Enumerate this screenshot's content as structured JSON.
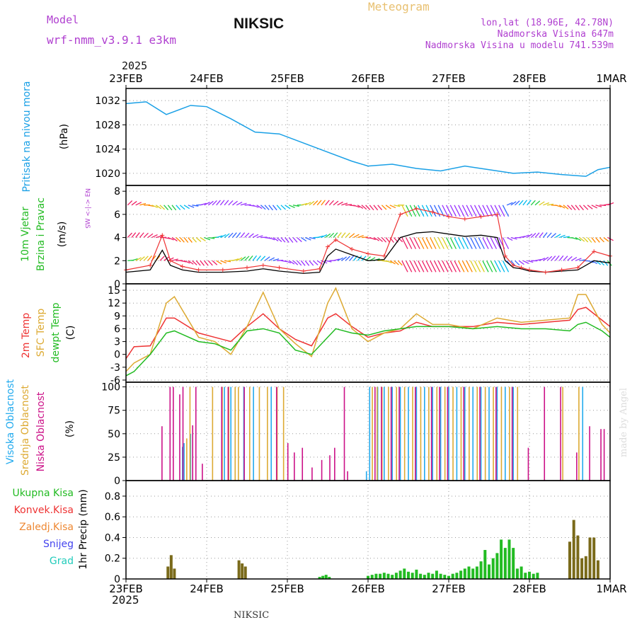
{
  "header": {
    "model_label": "Model",
    "model_name": "wrf-nmm_v3.9.1 e3km",
    "station": "NIKSIC",
    "product": "Meteogram",
    "coords": "lon,lat (18.96E, 42.78N)",
    "elevation": "Nadmorska Visina 647m",
    "model_elevation": "Nadmorska Visina u modelu 741.539m",
    "year": "2025",
    "footer_station": "NIKSIC",
    "credit": "made by Angel"
  },
  "colors": {
    "pressure": "#1aa0e6",
    "wind_speed": "#000000",
    "gust": "#ee3333",
    "temp2m": "#ee3333",
    "sfc": "#ddaa33",
    "dew": "#22bb22",
    "cloud_high": "#22aaee",
    "cloud_mid": "#ddaa33",
    "cloud_low": "#cc1188",
    "prec_total": "#22bb22",
    "prec_conv": "#ee3333",
    "prec_frozen": "#ee8833",
    "prec_snow": "#4444ee",
    "prec_grad": "#22ccbb"
  },
  "chart_data": [
    {
      "type": "line",
      "title": "Pritisak na nivou mora",
      "ylabel": "(hPa)",
      "ylim": [
        1018,
        1034
      ],
      "yticks": [
        "1032",
        "1028",
        "1024",
        "1020"
      ],
      "x_days": [
        0,
        0.25,
        0.5,
        0.8,
        1.0,
        1.3,
        1.6,
        1.9,
        2.2,
        2.5,
        2.8,
        3.0,
        3.3,
        3.6,
        3.9,
        4.2,
        4.5,
        4.8,
        5.1,
        5.4,
        5.7,
        5.85,
        6.0
      ],
      "values": [
        1031.5,
        1031.8,
        1029.7,
        1031.2,
        1031.0,
        1029.0,
        1026.8,
        1026.5,
        1025.0,
        1023.5,
        1022.0,
        1021.2,
        1021.5,
        1020.8,
        1020.4,
        1021.2,
        1020.6,
        1020.0,
        1020.2,
        1019.8,
        1019.5,
        1020.6,
        1021.0
      ]
    },
    {
      "type": "line",
      "title": "10m Vjetar",
      "subtitle": "Brzina i Pravac",
      "ylabel": "(m/s)",
      "ylim": [
        0,
        8.5
      ],
      "yticks": [
        "8",
        "6",
        "4",
        "2",
        "0"
      ],
      "legend": "W <-|-> E",
      "series": [
        {
          "name": "Brzina",
          "x_days": [
            0,
            0.3,
            0.45,
            0.55,
            0.7,
            0.9,
            1.2,
            1.5,
            1.7,
            1.9,
            2.2,
            2.4,
            2.5,
            2.6,
            2.8,
            3.0,
            3.2,
            3.4,
            3.6,
            3.8,
            4.0,
            4.2,
            4.4,
            4.6,
            4.7,
            4.8,
            4.9,
            5.0,
            5.2,
            5.4,
            5.6,
            5.8,
            6.0
          ],
          "values": [
            1.0,
            1.2,
            2.9,
            1.6,
            1.2,
            1.0,
            1.0,
            1.1,
            1.3,
            1.1,
            0.9,
            1.0,
            2.4,
            3.0,
            2.5,
            2.0,
            2.1,
            4.0,
            4.4,
            4.5,
            4.3,
            4.1,
            4.2,
            4.0,
            2.0,
            1.4,
            1.3,
            1.1,
            1.0,
            1.1,
            1.2,
            2.0,
            1.8
          ]
        },
        {
          "name": "Udar",
          "x_days": [
            0,
            0.3,
            0.45,
            0.55,
            0.7,
            0.9,
            1.2,
            1.5,
            1.7,
            1.9,
            2.2,
            2.4,
            2.5,
            2.6,
            2.8,
            3.0,
            3.2,
            3.4,
            3.6,
            3.8,
            4.0,
            4.2,
            4.4,
            4.6,
            4.7,
            4.8,
            4.9,
            5.0,
            5.2,
            5.4,
            5.6,
            5.8,
            6.0
          ],
          "values": [
            1.2,
            1.6,
            4.2,
            2.0,
            1.5,
            1.2,
            1.2,
            1.4,
            1.6,
            1.4,
            1.1,
            1.3,
            3.2,
            3.8,
            3.0,
            2.6,
            2.4,
            6.0,
            6.5,
            6.2,
            5.8,
            5.6,
            5.8,
            6.0,
            2.4,
            1.6,
            1.4,
            1.2,
            1.0,
            1.2,
            1.4,
            2.8,
            2.4
          ]
        }
      ]
    },
    {
      "type": "line",
      "title": "2m Temp",
      "ylabel": "(C)",
      "ylim": [
        -6.5,
        16.5
      ],
      "yticks": [
        "15",
        "12",
        "9",
        "6",
        "3",
        "0",
        "-3",
        "-6"
      ],
      "series": [
        {
          "name": "2m Temp",
          "x_days": [
            0,
            0.1,
            0.3,
            0.5,
            0.6,
            0.9,
            1.1,
            1.3,
            1.5,
            1.7,
            1.9,
            2.1,
            2.3,
            2.5,
            2.6,
            2.8,
            3.0,
            3.2,
            3.4,
            3.6,
            3.8,
            4.0,
            4.3,
            4.6,
            4.9,
            5.2,
            5.5,
            5.6,
            5.7,
            5.9,
            6.0
          ],
          "values": [
            -1.0,
            1.8,
            2.0,
            8.5,
            8.5,
            5.0,
            4.0,
            3.0,
            6.5,
            9.5,
            6.0,
            3.5,
            2.0,
            8.5,
            9.5,
            6.5,
            4.0,
            5.0,
            5.5,
            7.5,
            6.5,
            6.5,
            6.5,
            7.5,
            7.0,
            7.5,
            8.0,
            10.5,
            11.0,
            8.0,
            6.5
          ]
        },
        {
          "name": "SFC Temp",
          "x_days": [
            0,
            0.1,
            0.3,
            0.5,
            0.6,
            0.9,
            1.1,
            1.3,
            1.5,
            1.7,
            1.9,
            2.1,
            2.3,
            2.5,
            2.6,
            2.8,
            3.0,
            3.2,
            3.4,
            3.6,
            3.8,
            4.0,
            4.3,
            4.6,
            4.9,
            5.2,
            5.5,
            5.6,
            5.7,
            5.9,
            6.0
          ],
          "values": [
            -4.0,
            -2.0,
            0.0,
            12.0,
            13.5,
            4.0,
            3.0,
            0.0,
            6.5,
            14.5,
            6.0,
            2.5,
            -0.5,
            12.0,
            15.5,
            6.0,
            3.0,
            5.0,
            6.0,
            9.5,
            7.0,
            7.0,
            6.0,
            8.5,
            7.5,
            8.0,
            8.5,
            14.0,
            14.0,
            7.0,
            5.0
          ]
        },
        {
          "name": "dewpt Temp",
          "x_days": [
            0,
            0.1,
            0.3,
            0.5,
            0.6,
            0.9,
            1.1,
            1.3,
            1.5,
            1.7,
            1.9,
            2.1,
            2.3,
            2.5,
            2.6,
            2.8,
            3.0,
            3.2,
            3.4,
            3.6,
            3.8,
            4.0,
            4.3,
            4.6,
            4.9,
            5.2,
            5.5,
            5.6,
            5.7,
            5.9,
            6.0
          ],
          "values": [
            -5.0,
            -4.0,
            0.0,
            5.0,
            5.5,
            3.0,
            2.5,
            1.0,
            5.5,
            6.0,
            5.0,
            1.0,
            0.0,
            4.0,
            6.0,
            5.0,
            4.5,
            5.5,
            6.0,
            6.5,
            6.5,
            6.5,
            6.0,
            6.5,
            6.0,
            6.0,
            5.5,
            7.0,
            7.5,
            5.5,
            4.0
          ]
        }
      ]
    },
    {
      "type": "bar",
      "title": "Oblacnost",
      "ylabel": "(%)",
      "ylim": [
        0,
        105
      ],
      "yticks": [
        "100",
        "75",
        "50",
        "25",
        "0"
      ],
      "series": [
        {
          "name": "Visoka Oblacnost",
          "x_days": [
            0.7,
            0.72,
            0.8,
            1.22,
            1.3,
            1.46,
            1.58,
            1.8,
            2.98,
            3.02,
            3.12,
            3.2,
            3.3,
            3.4,
            3.5,
            3.6,
            3.7,
            3.8,
            3.9,
            4.0,
            4.1,
            4.2,
            4.3,
            4.4,
            4.5,
            4.6,
            4.7,
            4.8,
            5.66
          ],
          "values": [
            36,
            40,
            50,
            100,
            100,
            100,
            100,
            100,
            10,
            100,
            100,
            100,
            100,
            100,
            100,
            100,
            100,
            100,
            100,
            100,
            100,
            100,
            100,
            100,
            100,
            100,
            100,
            100,
            100
          ]
        },
        {
          "name": "Srednja Oblacnost",
          "x_days": [
            0.74,
            0.78,
            1.06,
            1.18,
            1.26,
            1.34,
            1.38,
            1.52,
            1.64,
            1.74,
            1.86,
            1.94,
            3.04,
            3.1,
            3.16,
            3.24,
            3.34,
            3.44,
            3.54,
            3.64,
            3.74,
            3.84,
            3.94,
            4.04,
            4.14,
            4.24,
            4.34,
            4.44,
            4.54,
            4.64,
            4.74,
            4.84,
            5.4,
            5.6
          ],
          "values": [
            45,
            100,
            100,
            100,
            100,
            100,
            100,
            100,
            100,
            100,
            100,
            100,
            100,
            100,
            100,
            100,
            100,
            100,
            100,
            100,
            100,
            100,
            100,
            100,
            100,
            100,
            100,
            100,
            100,
            100,
            100,
            100,
            100,
            100
          ]
        },
        {
          "name": "Niska Oblacnost",
          "x_days": [
            0.42,
            0.52,
            0.56,
            0.64,
            0.68,
            0.8,
            0.84,
            0.92,
            1.16,
            1.24,
            1.44,
            1.84,
            1.98,
            2.06,
            2.16,
            2.28,
            2.4,
            2.5,
            2.56,
            2.68,
            2.72,
            3.06,
            3.14,
            3.26,
            3.36,
            3.56,
            3.76,
            3.86,
            3.96,
            4.16,
            4.36,
            4.56,
            4.76,
            4.96,
            5.16,
            5.36,
            5.56,
            5.72,
            5.86,
            5.9
          ],
          "values": [
            58,
            100,
            100,
            92,
            100,
            59,
            100,
            18,
            100,
            100,
            100,
            100,
            40,
            30,
            35,
            14,
            22,
            27,
            35,
            100,
            10,
            100,
            100,
            100,
            100,
            100,
            100,
            100,
            100,
            100,
            100,
            100,
            100,
            35,
            100,
            100,
            30,
            58,
            55,
            55
          ]
        }
      ]
    },
    {
      "type": "bar",
      "title": "1hr Precip",
      "ylabel": "(mm)",
      "ylim": [
        0,
        0.95
      ],
      "yticks": [
        "0.8",
        "0.6",
        "0.4",
        "0.2",
        "0"
      ],
      "legend": [
        "Ukupna Kisa",
        "Konvek.Kisa",
        "Zaledj.Kisa",
        "Snijeg",
        "Grad"
      ],
      "x_days": [
        0.52,
        0.56,
        0.6,
        1.4,
        1.44,
        1.48,
        2.4,
        2.44,
        2.48,
        2.52,
        3.0,
        3.05,
        3.1,
        3.15,
        3.2,
        3.25,
        3.3,
        3.35,
        3.4,
        3.45,
        3.5,
        3.55,
        3.6,
        3.65,
        3.7,
        3.75,
        3.8,
        3.85,
        3.9,
        3.95,
        4.0,
        4.05,
        4.1,
        4.15,
        4.2,
        4.25,
        4.3,
        4.35,
        4.4,
        4.45,
        4.5,
        4.55,
        4.6,
        4.65,
        4.7,
        4.75,
        4.8,
        4.85,
        4.9,
        4.95,
        5.0,
        5.05,
        5.1,
        5.15,
        5.2,
        5.25,
        5.3,
        5.35,
        5.4,
        5.45,
        5.5,
        5.55,
        5.6,
        5.65,
        5.7,
        5.75,
        5.8,
        5.85,
        5.9,
        5.95
      ],
      "values": [
        0.12,
        0.23,
        0.1,
        0.18,
        0.15,
        0.12,
        0.02,
        0.03,
        0.04,
        0.02,
        0.03,
        0.04,
        0.05,
        0.05,
        0.06,
        0.05,
        0.04,
        0.06,
        0.08,
        0.1,
        0.07,
        0.06,
        0.09,
        0.05,
        0.04,
        0.06,
        0.05,
        0.08,
        0.05,
        0.04,
        0.03,
        0.05,
        0.06,
        0.08,
        0.1,
        0.12,
        0.1,
        0.12,
        0.17,
        0.28,
        0.14,
        0.2,
        0.25,
        0.38,
        0.3,
        0.38,
        0.3,
        0.1,
        0.12,
        0.06,
        0.07,
        0.05,
        0.06,
        0.0,
        0.0,
        0.0,
        0.0,
        0.0,
        0.0,
        0.0,
        0.36,
        0.57,
        0.42,
        0.2,
        0.22,
        0.4,
        0.4,
        0.18,
        0.0,
        0.0
      ]
    }
  ],
  "axes": {
    "top_labels": [
      "23FEB",
      "24FEB",
      "25FEB",
      "26FEB",
      "27FEB",
      "28FEB",
      "1MAR"
    ],
    "bottom_labels": [
      "23FEB",
      "24FEB",
      "25FEB",
      "26FEB",
      "27FEB",
      "28FEB",
      "1MAR"
    ]
  },
  "panel_labels": {
    "pressure": [
      "Pritisak na nivou mora",
      "(hPa)"
    ],
    "wind": [
      "10m Vjetar",
      "Brzina i Pravac",
      "(m/s)",
      "W <-|-> E"
    ],
    "wind_arrows": [
      "N",
      "S"
    ],
    "temp": [
      "2m Temp",
      "SFC Temp",
      "dewpt Temp",
      "(C)"
    ],
    "cloud": [
      "Visoka Oblacnost",
      "Srednja Oblacnost",
      "Niska Oblacnost",
      "(%)"
    ],
    "precip": [
      "Ukupna Kisa",
      "Konvek.Kisa",
      "Zaledj.Kisa",
      "Snijeg",
      "Grad",
      "1hr Precip (mm)"
    ]
  }
}
